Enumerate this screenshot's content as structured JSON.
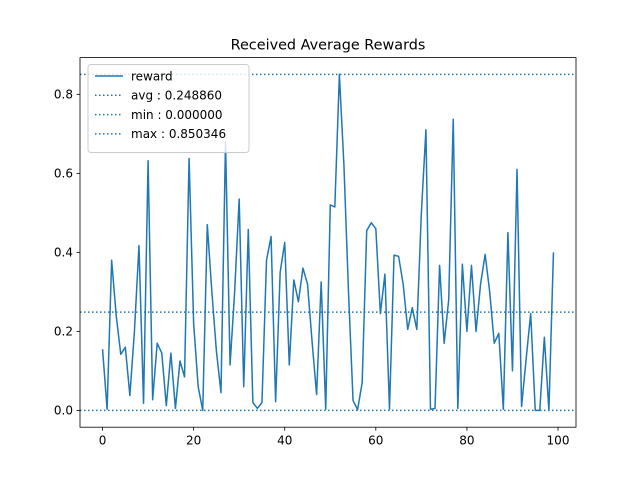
{
  "chart_data": {
    "type": "line",
    "title": "Received Average Rewards",
    "xlabel": "",
    "ylabel": "",
    "xlim": [
      -4.95,
      103.95
    ],
    "ylim": [
      -0.0425,
      0.8929
    ],
    "x_ticks": [
      0,
      20,
      40,
      60,
      80,
      100
    ],
    "y_ticks": [
      0.0,
      0.2,
      0.4,
      0.6,
      0.8
    ],
    "x_tick_labels": [
      "0",
      "20",
      "40",
      "60",
      "80",
      "100"
    ],
    "y_tick_labels": [
      "0.0",
      "0.2",
      "0.4",
      "0.6",
      "0.8"
    ],
    "grid": false,
    "legend_position": "top-left",
    "color": "#1f77b4",
    "series": [
      {
        "name": "reward",
        "style": "solid",
        "x": [
          0,
          1,
          2,
          3,
          4,
          5,
          6,
          7,
          8,
          9,
          10,
          11,
          12,
          13,
          14,
          15,
          16,
          17,
          18,
          19,
          20,
          21,
          22,
          23,
          24,
          25,
          26,
          27,
          28,
          29,
          30,
          31,
          32,
          33,
          34,
          35,
          36,
          37,
          38,
          39,
          40,
          41,
          42,
          43,
          44,
          45,
          46,
          47,
          48,
          49,
          50,
          51,
          52,
          53,
          54,
          55,
          56,
          57,
          58,
          59,
          60,
          61,
          62,
          63,
          64,
          65,
          66,
          67,
          68,
          69,
          70,
          71,
          72,
          73,
          74,
          75,
          76,
          77,
          78,
          79,
          80,
          81,
          82,
          83,
          84,
          85,
          86,
          87,
          88,
          89,
          90,
          91,
          92,
          93,
          94,
          95,
          96,
          97,
          98,
          99
        ],
        "y": [
          0.155,
          0.003,
          0.38,
          0.24,
          0.142,
          0.16,
          0.038,
          0.2,
          0.417,
          0.018,
          0.632,
          0.027,
          0.17,
          0.145,
          0.012,
          0.145,
          0.005,
          0.125,
          0.085,
          0.638,
          0.22,
          0.06,
          0.0,
          0.47,
          0.3,
          0.15,
          0.045,
          0.68,
          0.115,
          0.3,
          0.535,
          0.06,
          0.458,
          0.02,
          0.005,
          0.02,
          0.38,
          0.44,
          0.022,
          0.35,
          0.425,
          0.115,
          0.33,
          0.275,
          0.36,
          0.32,
          0.175,
          0.04,
          0.325,
          0.003,
          0.52,
          0.515,
          0.85,
          0.62,
          0.3,
          0.025,
          0.002,
          0.07,
          0.455,
          0.475,
          0.46,
          0.245,
          0.345,
          0.003,
          0.393,
          0.39,
          0.32,
          0.205,
          0.26,
          0.205,
          0.5,
          0.71,
          0.003,
          0.005,
          0.367,
          0.17,
          0.28,
          0.737,
          0.005,
          0.37,
          0.2,
          0.367,
          0.2,
          0.32,
          0.395,
          0.3,
          0.17,
          0.195,
          0.003,
          0.45,
          0.1,
          0.61,
          0.01,
          0.13,
          0.245,
          0.0,
          0.0,
          0.185,
          0.0,
          0.4
        ]
      }
    ],
    "hlines": [
      {
        "name": "avg : 0.248860",
        "y": 0.24886,
        "style": "dotted"
      },
      {
        "name": "min : 0.000000",
        "y": 0.0,
        "style": "dotted"
      },
      {
        "name": "max : 0.850346",
        "y": 0.850346,
        "style": "dotted"
      }
    ]
  }
}
